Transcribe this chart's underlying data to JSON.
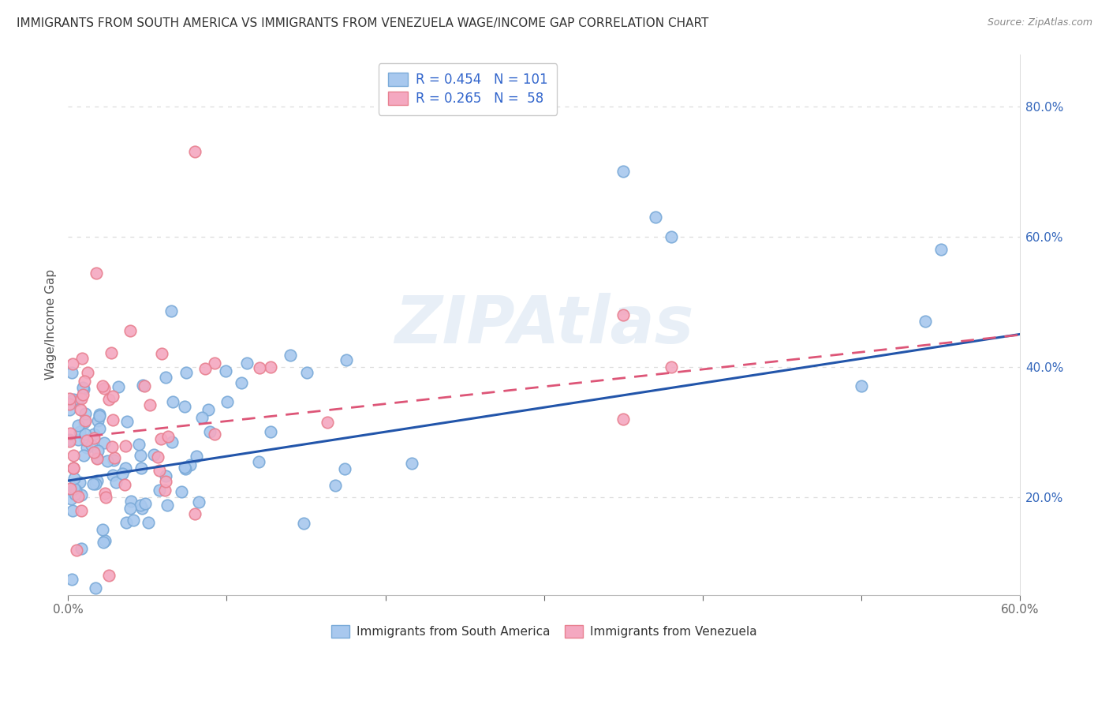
{
  "title": "IMMIGRANTS FROM SOUTH AMERICA VS IMMIGRANTS FROM VENEZUELA WAGE/INCOME GAP CORRELATION CHART",
  "source": "Source: ZipAtlas.com",
  "ylabel": "Wage/Income Gap",
  "right_yticks": [
    "20.0%",
    "40.0%",
    "60.0%",
    "80.0%"
  ],
  "right_ytick_vals": [
    0.2,
    0.4,
    0.6,
    0.8
  ],
  "legend_entry1": "R = 0.454   N = 101",
  "legend_entry2": "R = 0.265   N =  58",
  "watermark": "ZIPAtlas",
  "blue_color": "#A8C8EE",
  "pink_color": "#F4A8C0",
  "blue_edge_color": "#7AAAD8",
  "pink_edge_color": "#E88090",
  "blue_line_color": "#2255AA",
  "pink_line_color": "#DD5577",
  "xlim": [
    0.0,
    0.6
  ],
  "ylim": [
    0.05,
    0.88
  ],
  "background_color": "#FFFFFF",
  "grid_color": "#DDDDDD",
  "x_tick_positions": [
    0.0,
    0.1,
    0.2,
    0.3,
    0.4,
    0.5,
    0.6
  ]
}
